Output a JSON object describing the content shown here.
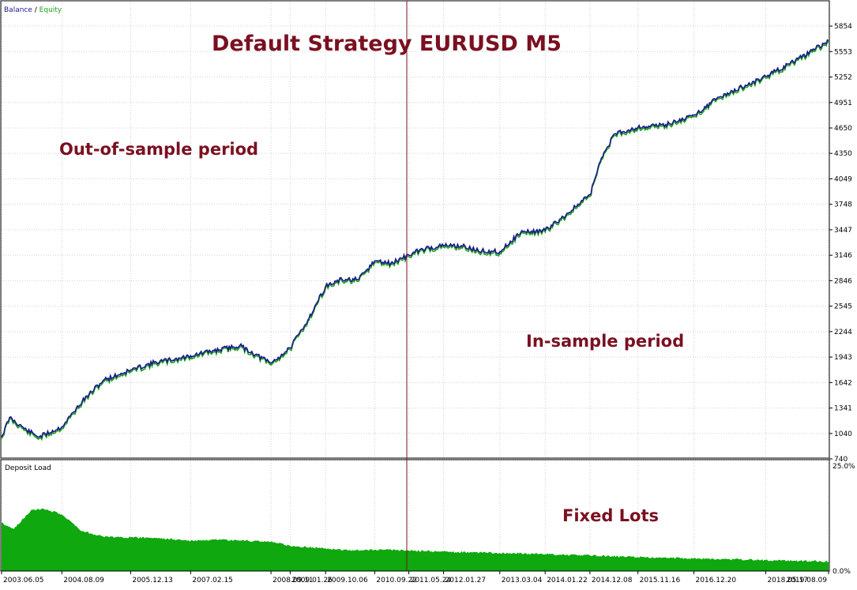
{
  "chart_data": [
    {
      "type": "line",
      "panel": "balance-equity",
      "legend": {
        "balance_label": "Balance",
        "separator": " / ",
        "equity_label": "Equity",
        "position": "top-left"
      },
      "colors": {
        "balance": "#1a1a8c",
        "equity": "#1fa01f",
        "divider": "#7a1020",
        "annotation": "#7a1020",
        "grid": "#d0d0d0"
      },
      "title": "Default Strategy EURUSD M5",
      "annotations": [
        "Out-of-sample period",
        "In-sample period"
      ],
      "y_ticks": [
        5854,
        5553,
        5252,
        4951,
        4650,
        4350,
        4049,
        3748,
        3447,
        3146,
        2846,
        2545,
        2244,
        1943,
        1642,
        1341,
        1040,
        740
      ],
      "ylim": [
        740,
        5854
      ],
      "grid": true,
      "series": [
        {
          "name": "Balance",
          "x": [
            "2003.06.05",
            "2003.08.01",
            "2003.12.01",
            "2004.03.01",
            "2004.08.09",
            "2005.01.01",
            "2005.06.01",
            "2005.12.13",
            "2006.06.01",
            "2006.12.01",
            "2007.02.15",
            "2007.08.01",
            "2008.02.01",
            "2008.09.11",
            "2009.01.26",
            "2009.06.01",
            "2009.10.06",
            "2010.02.01",
            "2010.06.01",
            "2010.09.22",
            "2011.01.15",
            "2011.05.24",
            "2011.09.01",
            "2012.01.27",
            "2012.06.01",
            "2012.10.01",
            "2013.03.04",
            "2013.08.01",
            "2014.01.22",
            "2014.06.01",
            "2014.12.08",
            "2015.03.01",
            "2015.06.01",
            "2015.11.16",
            "2016.06.01",
            "2016.12.20",
            "2017.06.01",
            "2018.05.17",
            "2018.12.01",
            "2019.08.09"
          ],
          "values": [
            1000,
            1230,
            1080,
            1000,
            1120,
            1420,
            1670,
            1790,
            1880,
            1930,
            1960,
            2020,
            2080,
            1870,
            2050,
            2380,
            2780,
            2860,
            2860,
            3080,
            3050,
            3150,
            3220,
            3260,
            3260,
            3200,
            3190,
            3420,
            3440,
            3600,
            3860,
            4300,
            4580,
            4660,
            4690,
            4800,
            5000,
            5260,
            5430,
            5680
          ]
        },
        {
          "name": "Equity",
          "x": [
            "2003.06.05",
            "2003.08.01",
            "2003.12.01",
            "2004.03.01",
            "2004.08.09",
            "2005.01.01",
            "2005.06.01",
            "2005.12.13",
            "2006.06.01",
            "2006.12.01",
            "2007.02.15",
            "2007.08.01",
            "2008.02.01",
            "2008.09.11",
            "2009.01.26",
            "2009.06.01",
            "2009.10.06",
            "2010.02.01",
            "2010.06.01",
            "2010.09.22",
            "2011.01.15",
            "2011.05.24",
            "2011.09.01",
            "2012.01.27",
            "2012.06.01",
            "2012.10.01",
            "2013.03.04",
            "2013.08.01",
            "2014.01.22",
            "2014.06.01",
            "2014.12.08",
            "2015.03.01",
            "2015.06.01",
            "2015.11.16",
            "2016.06.01",
            "2016.12.20",
            "2017.06.01",
            "2018.05.17",
            "2018.12.01",
            "2019.08.09"
          ],
          "values": [
            980,
            1210,
            1060,
            980,
            1100,
            1400,
            1650,
            1770,
            1860,
            1910,
            1940,
            2000,
            2060,
            1850,
            2030,
            2360,
            2760,
            2840,
            2840,
            3060,
            3030,
            3130,
            3200,
            3240,
            3240,
            3180,
            3170,
            3400,
            3420,
            3580,
            3840,
            4280,
            4560,
            4640,
            4670,
            4780,
            4980,
            5240,
            5410,
            5660
          ]
        }
      ]
    },
    {
      "type": "area",
      "panel": "deposit-load",
      "label": "Deposit Load",
      "annotation": "Fixed Lots",
      "y_ticks": [
        "25.0%",
        "0.0%"
      ],
      "ylim": [
        0,
        25
      ],
      "x_ticks": [
        "2003.06.05",
        "2004.08.09",
        "2005.12.13",
        "2007.02.15",
        "2008.09.11",
        "2009.01.26",
        "2009.10.06",
        "2010.09.22",
        "2011.05.24",
        "2012.01.27",
        "2013.03.04",
        "2014.01.22",
        "2014.12.08",
        "2015.11.16",
        "2016.12.20",
        "2018.05.17",
        "2019.08.09"
      ],
      "series": [
        {
          "name": "Deposit Load",
          "x": [
            "2003.06.05",
            "2003.09.01",
            "2004.01.01",
            "2004.04.01",
            "2004.08.09",
            "2005.01.01",
            "2005.06.01",
            "2005.12.13",
            "2006.06.01",
            "2007.02.15",
            "2007.09.01",
            "2008.04.01",
            "2008.09.11",
            "2009.01.26",
            "2009.10.06",
            "2010.04.01",
            "2010.09.22",
            "2011.05.24",
            "2012.01.27",
            "2013.03.04",
            "2014.01.22",
            "2014.12.08",
            "2015.11.16",
            "2016.12.20",
            "2018.05.17",
            "2019.08.09"
          ],
          "values": [
            11.5,
            10,
            14.5,
            14.8,
            13.5,
            9.5,
            8.2,
            8,
            7.9,
            7.2,
            7.4,
            7.2,
            7,
            6,
            5.4,
            4.9,
            5.1,
            4.9,
            4.6,
            4.3,
            4.0,
            3.7,
            3.3,
            3.0,
            2.6,
            2.3
          ]
        }
      ]
    }
  ]
}
